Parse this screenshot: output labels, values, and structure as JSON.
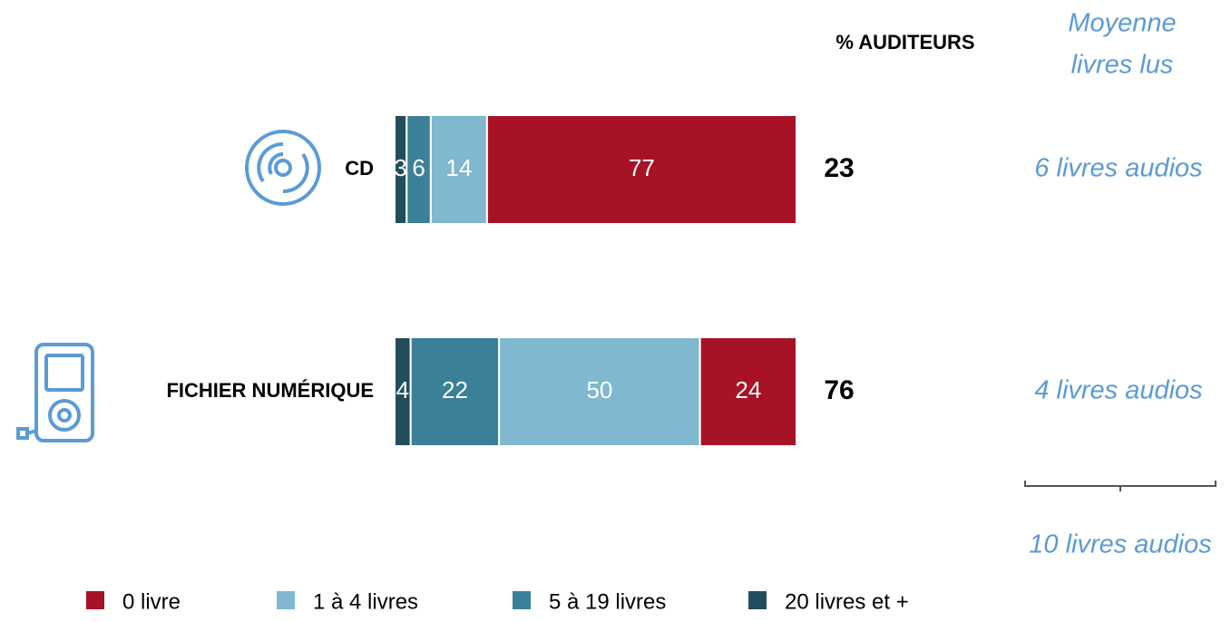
{
  "chart_data": {
    "type": "stacked_bar_horizontal",
    "categories": [
      "CD",
      "FICHIER NUMÉRIQUE"
    ],
    "series": [
      {
        "name": "0 livre",
        "color": "#a71226",
        "values": [
          77,
          24
        ]
      },
      {
        "name": "1 à 4 livres",
        "color": "#7fb8cf",
        "values": [
          14,
          50
        ]
      },
      {
        "name": "5 à 19 livres",
        "color": "#3a8099",
        "values": [
          6,
          22
        ]
      },
      {
        "name": "20 livres et +",
        "color": "#234d5c",
        "values": [
          3,
          4
        ]
      }
    ],
    "xlim": [
      0,
      100
    ],
    "auditeurs_header": "% AUDITEURS",
    "auditeurs": [
      23,
      76
    ],
    "moyenne_header": [
      "Moyenne",
      "livres lus"
    ],
    "moyenne": [
      "6 livres audios",
      "4 livres audios"
    ],
    "scale_annotation": "10 livres audios"
  }
}
